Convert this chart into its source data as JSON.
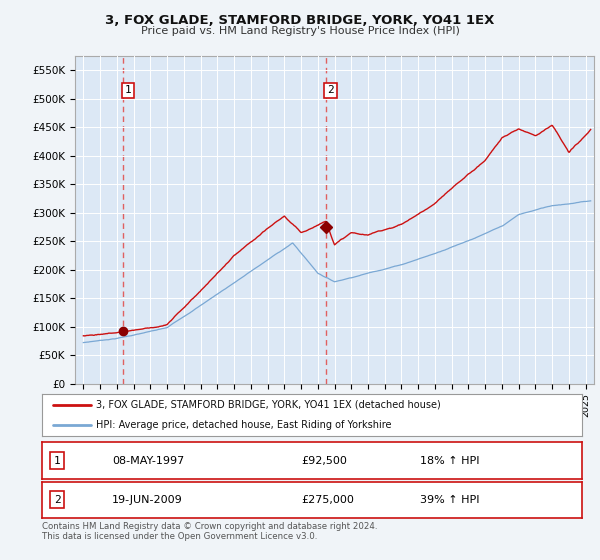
{
  "title": "3, FOX GLADE, STAMFORD BRIDGE, YORK, YO41 1EX",
  "subtitle": "Price paid vs. HM Land Registry's House Price Index (HPI)",
  "ylabel_ticks": [
    "£0",
    "£50K",
    "£100K",
    "£150K",
    "£200K",
    "£250K",
    "£300K",
    "£350K",
    "£400K",
    "£450K",
    "£500K",
    "£550K"
  ],
  "ytick_values": [
    0,
    50000,
    100000,
    150000,
    200000,
    250000,
    300000,
    350000,
    400000,
    450000,
    500000,
    550000
  ],
  "ylim": [
    0,
    575000
  ],
  "xlim_start": 1994.5,
  "xlim_end": 2025.5,
  "background_color": "#f0f4f8",
  "plot_bg_color": "#dce8f5",
  "grid_color": "#ffffff",
  "sale1_date": 1997.36,
  "sale1_price": 92500,
  "sale1_label": "1",
  "sale2_date": 2009.47,
  "sale2_price": 275000,
  "sale2_label": "2",
  "legend_line1": "3, FOX GLADE, STAMFORD BRIDGE, YORK, YO41 1EX (detached house)",
  "legend_line2": "HPI: Average price, detached house, East Riding of Yorkshire",
  "table_row1_num": "1",
  "table_row1_date": "08-MAY-1997",
  "table_row1_price": "£92,500",
  "table_row1_hpi": "18% ↑ HPI",
  "table_row2_num": "2",
  "table_row2_date": "19-JUN-2009",
  "table_row2_price": "£275,000",
  "table_row2_hpi": "39% ↑ HPI",
  "footer": "Contains HM Land Registry data © Crown copyright and database right 2024.\nThis data is licensed under the Open Government Licence v3.0.",
  "hpi_color": "#7aa8d4",
  "price_color": "#cc1111",
  "sale_marker_color": "#8b0000",
  "vline_color": "#e06060"
}
